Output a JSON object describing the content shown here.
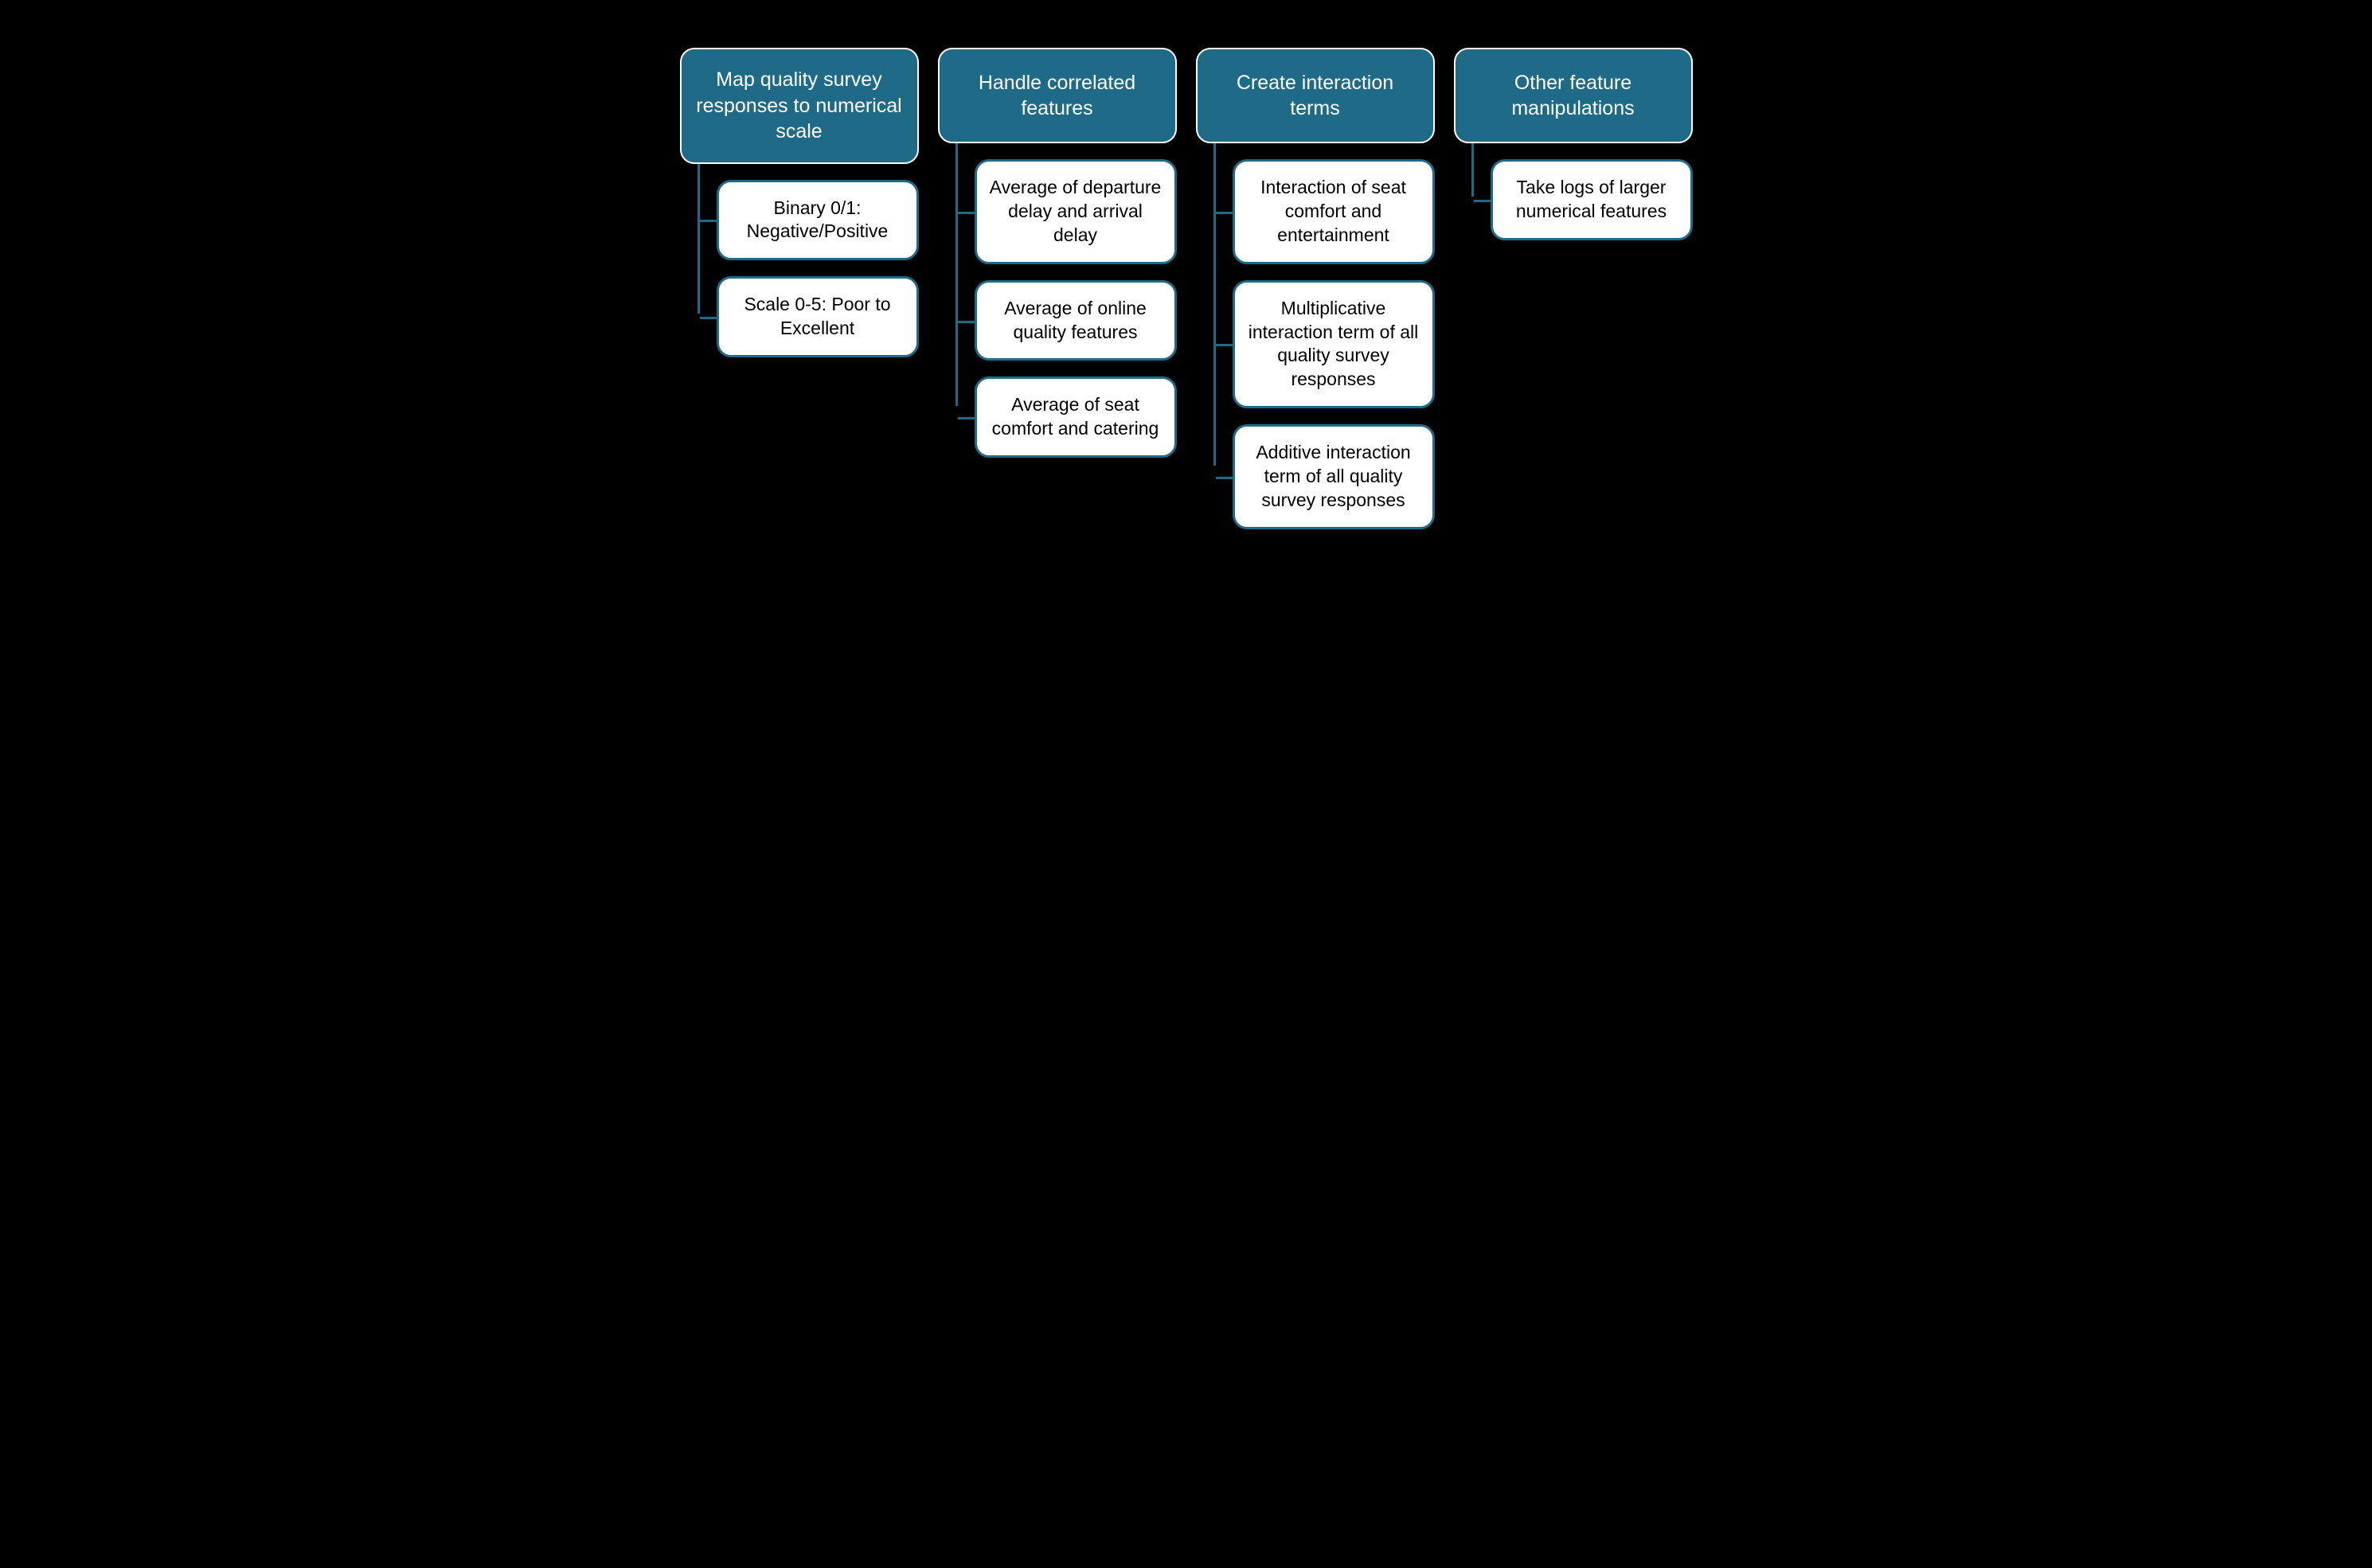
{
  "type": "tree",
  "background_color": "#000000",
  "header_style": {
    "fill": "#1f6b87",
    "text_color": "#ffffff",
    "border_color": "#ffffff",
    "border_width": 2,
    "border_radius": 18,
    "font_size": 25
  },
  "child_style": {
    "fill": "#ffffff",
    "text_color": "#000000",
    "border_color": "#1f6b87",
    "border_width": 3,
    "border_radius": 18,
    "font_size": 23
  },
  "connector_color": "#1f6b87",
  "connector_width": 3,
  "columns": [
    {
      "header": "Map quality survey responses to numerical scale",
      "children": [
        "Binary 0/1: Negative/Positive",
        "Scale 0-5: Poor to Excellent"
      ]
    },
    {
      "header": "Handle correlated features",
      "children": [
        "Average of departure delay and arrival delay",
        "Average of online quality features",
        "Average of seat comfort and catering"
      ]
    },
    {
      "header": "Create interaction terms",
      "children": [
        "Interaction of seat comfort and entertainment",
        "Multiplicative interaction term of all quality survey responses",
        "Additive interaction term of all quality survey responses"
      ]
    },
    {
      "header": "Other feature manipulations",
      "children": [
        "Take logs of larger numerical features"
      ]
    }
  ]
}
